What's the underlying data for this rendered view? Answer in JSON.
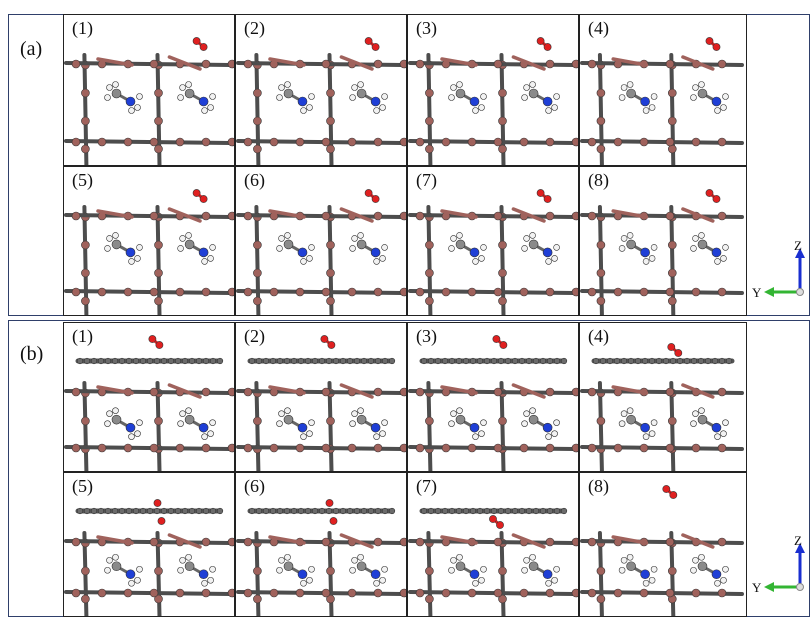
{
  "panels": [
    {
      "label": "(a)",
      "frames": [
        {
          "label": "(1)",
          "substrate": "bulk",
          "o2": "free"
        },
        {
          "label": "(2)",
          "substrate": "bulk",
          "o2": "free"
        },
        {
          "label": "(3)",
          "substrate": "bulk",
          "o2": "free"
        },
        {
          "label": "(4)",
          "substrate": "bulk",
          "o2": "bound"
        },
        {
          "label": "(5)",
          "substrate": "bulk",
          "o2": "bound"
        },
        {
          "label": "(6)",
          "substrate": "bulk",
          "o2": "bound"
        },
        {
          "label": "(7)",
          "substrate": "bulk",
          "o2": "bound"
        },
        {
          "label": "(8)",
          "substrate": "bulk",
          "o2": "bound"
        }
      ]
    },
    {
      "label": "(b)",
      "frames": [
        {
          "label": "(1)",
          "substrate": "graphene",
          "o2": "free"
        },
        {
          "label": "(2)",
          "substrate": "graphene",
          "o2": "free"
        },
        {
          "label": "(3)",
          "substrate": "graphene",
          "o2": "free"
        },
        {
          "label": "(4)",
          "substrate": "graphene",
          "o2": "bound"
        },
        {
          "label": "(5)",
          "substrate": "graphene",
          "o2": "split"
        },
        {
          "label": "(6)",
          "substrate": "graphene",
          "o2": "split"
        },
        {
          "label": "(7)",
          "substrate": "graphene",
          "o2": "below"
        },
        {
          "label": "(8)",
          "substrate": "bare",
          "o2": "free"
        }
      ]
    }
  ],
  "axes": {
    "vertical": "Z",
    "horizontal": "Y"
  },
  "colors": {
    "frame": "#2f3f6a",
    "bond": "#4d4d4d",
    "lead": "#a0625c",
    "nitrogen": "#1f3fd6",
    "hydrogen": "#f2f2f2",
    "carbon": "#8a8a8a",
    "oxygen": "#e02020",
    "axis_z": "#1a2fd0",
    "axis_y": "#33b533"
  }
}
